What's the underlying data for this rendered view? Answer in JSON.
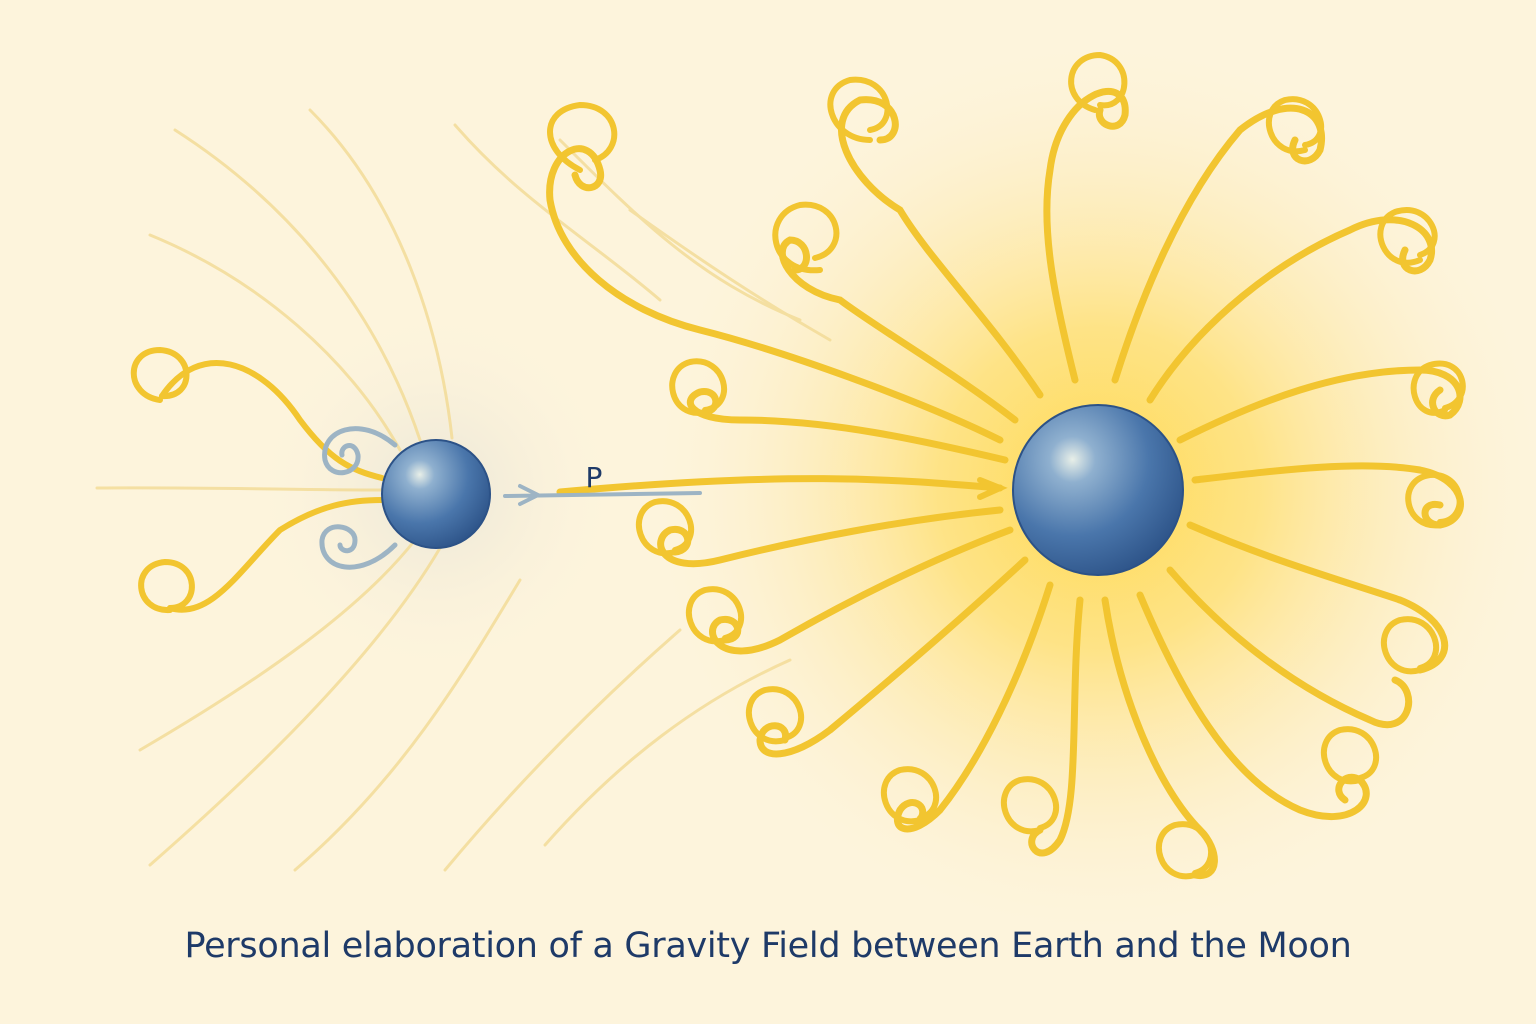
{
  "diagram": {
    "point_label": "P",
    "caption": "Personal elaboration of a Gravity Field between Earth and the Moon"
  },
  "colors": {
    "background": "#fdf4dc",
    "field_line": "#f2c530",
    "faint_line": "#f3dc98",
    "glow": "#ffd84a",
    "body_blue": "#3e6da6",
    "moon_swirl": "#9db4c4",
    "text": "#1e3a68"
  }
}
